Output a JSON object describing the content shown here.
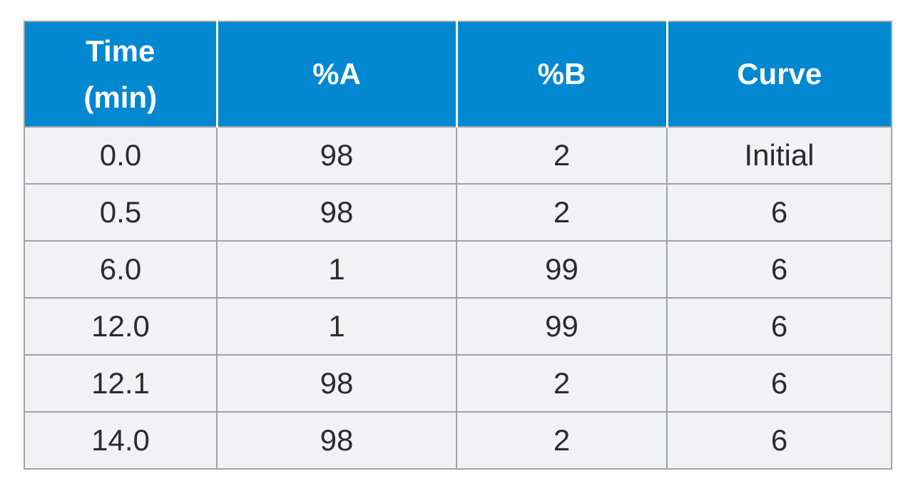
{
  "table": {
    "headers": [
      "Time\n(min)",
      "%A",
      "%B",
      "Curve"
    ],
    "rows": [
      [
        "0.0",
        "98",
        "2",
        "Initial"
      ],
      [
        "0.5",
        "98",
        "2",
        "6"
      ],
      [
        "6.0",
        "1",
        "99",
        "6"
      ],
      [
        "12.0",
        "1",
        "99",
        "6"
      ],
      [
        "12.1",
        "98",
        "2",
        "6"
      ],
      [
        "14.0",
        "98",
        "2",
        "6"
      ]
    ]
  },
  "colors": {
    "header_bg": "#0288d1",
    "header_text": "#ffffff",
    "row_bg": "#f2f2f4",
    "border": "#9da3a8"
  }
}
